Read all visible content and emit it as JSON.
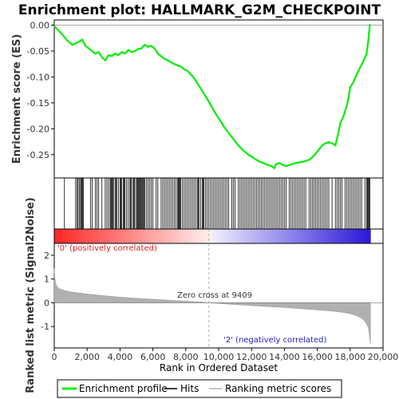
{
  "chart_data": {
    "type": "line",
    "title": "Enrichment plot: HALLMARK_G2M_CHECKPOINT",
    "colors": {
      "enrichment_line": "#00ee00",
      "pos_corr_label": "#e02020",
      "neg_corr_label": "#2020d0",
      "metric_fill": "#b0b0b0",
      "zero_line": "#888888"
    },
    "top_panel": {
      "ylabel": "Enrichment score (ES)",
      "ylim": [
        -0.295,
        0.01
      ],
      "yticks": [
        0.0,
        -0.05,
        -0.1,
        -0.15,
        -0.2,
        -0.25
      ],
      "ytick_labels": [
        "0.00",
        "-0.05",
        "-0.10",
        "-0.15",
        "-0.20",
        "-0.25"
      ],
      "series": [
        {
          "name": "Enrichment profile",
          "x": [
            0,
            300,
            600,
            800,
            1100,
            1300,
            1500,
            1700,
            1900,
            2100,
            2300,
            2500,
            2700,
            2900,
            3100,
            3300,
            3500,
            3700,
            3900,
            4100,
            4300,
            4500,
            4700,
            4900,
            5100,
            5300,
            5500,
            5700,
            5900,
            6100,
            6300,
            6500,
            6700,
            6900,
            7100,
            7300,
            7500,
            7700,
            7900,
            8100,
            8300,
            8500,
            8700,
            8900,
            9100,
            9409,
            9700,
            10000,
            10300,
            10600,
            10900,
            11200,
            11500,
            11800,
            12100,
            12400,
            12700,
            13000,
            13200,
            13400,
            13500,
            13700,
            13900,
            14100,
            14300,
            14500,
            14700,
            14900,
            15100,
            15300,
            15500,
            15700,
            15900,
            16100,
            16300,
            16500,
            16700,
            16900,
            17100,
            17300,
            17400,
            17600,
            17800,
            17900,
            18000,
            18200,
            18400,
            18600,
            18800,
            19000,
            19100,
            19200
          ],
          "values": [
            -0.002,
            -0.012,
            -0.022,
            -0.03,
            -0.038,
            -0.035,
            -0.032,
            -0.028,
            -0.04,
            -0.045,
            -0.05,
            -0.055,
            -0.052,
            -0.062,
            -0.068,
            -0.058,
            -0.06,
            -0.055,
            -0.058,
            -0.052,
            -0.055,
            -0.048,
            -0.052,
            -0.05,
            -0.046,
            -0.045,
            -0.038,
            -0.042,
            -0.04,
            -0.045,
            -0.055,
            -0.06,
            -0.065,
            -0.068,
            -0.072,
            -0.075,
            -0.078,
            -0.08,
            -0.085,
            -0.088,
            -0.095,
            -0.102,
            -0.112,
            -0.122,
            -0.132,
            -0.148,
            -0.165,
            -0.18,
            -0.195,
            -0.208,
            -0.22,
            -0.232,
            -0.242,
            -0.25,
            -0.256,
            -0.262,
            -0.266,
            -0.27,
            -0.272,
            -0.276,
            -0.268,
            -0.266,
            -0.27,
            -0.272,
            -0.27,
            -0.268,
            -0.266,
            -0.265,
            -0.264,
            -0.262,
            -0.26,
            -0.255,
            -0.248,
            -0.24,
            -0.232,
            -0.228,
            -0.226,
            -0.228,
            -0.232,
            -0.205,
            -0.19,
            -0.175,
            -0.155,
            -0.14,
            -0.12,
            -0.11,
            -0.095,
            -0.082,
            -0.07,
            -0.055,
            -0.03,
            0.002
          ]
        }
      ]
    },
    "hits": [
      620,
      1300,
      1380,
      1450,
      1520,
      1600,
      1650,
      1700,
      1720,
      1780,
      2200,
      2300,
      2500,
      2600,
      2700,
      2900,
      3100,
      3200,
      3300,
      3400,
      3450,
      3500,
      3550,
      3600,
      3700,
      3750,
      3800,
      3900,
      4000,
      4050,
      4100,
      4200,
      4250,
      4300,
      4400,
      4500,
      4600,
      4650,
      4700,
      4800,
      4850,
      4900,
      5000,
      5050,
      5100,
      5150,
      5200,
      5250,
      5300,
      5350,
      5400,
      5450,
      5500,
      5600,
      5700,
      5800,
      5900,
      6000,
      6200,
      6300,
      6500,
      6600,
      6700,
      6800,
      6900,
      7000,
      7100,
      7200,
      7300,
      7400,
      7500,
      7550,
      7600,
      7650,
      7700,
      7800,
      7900,
      8000,
      8100,
      8200,
      8300,
      8400,
      8500,
      8600,
      8700,
      8750,
      8800,
      8900,
      9000,
      9050,
      9100,
      9200,
      9300,
      9400,
      9500,
      9600,
      9700,
      9800,
      9900,
      10000,
      10100,
      10200,
      10300,
      10400,
      10500,
      10600,
      10800,
      10900,
      11000,
      11200,
      11300,
      11400,
      11500,
      11600,
      11700,
      11800,
      11900,
      12000,
      12100,
      12200,
      12300,
      12400,
      12500,
      12600,
      12700,
      12800,
      12900,
      13000,
      13100,
      13200,
      13300,
      13400,
      13500,
      13600,
      13700,
      13800,
      13900,
      14000,
      14100,
      14300,
      14400,
      14500,
      14600,
      14700,
      14800,
      14900,
      15000,
      15100,
      15200,
      15300,
      15500,
      15600,
      15700,
      15800,
      15900,
      16000,
      16100,
      16200,
      16300,
      16400,
      16500,
      16600,
      16700,
      16900,
      17100,
      17200,
      17300,
      17400,
      17500,
      17700,
      17800,
      17900,
      18000,
      18100,
      18200,
      18300,
      18400,
      18500,
      18600,
      18700,
      18900,
      19000,
      19050,
      19100,
      19150,
      19200
    ],
    "bottom_panel": {
      "ylabel": "Ranked list metric (Signal2Noise)",
      "xlabel": "Rank in Ordered Dataset",
      "ylim": [
        -1.9,
        2.5
      ],
      "yticks": [
        2,
        1,
        0,
        -1
      ],
      "ytick_labels": [
        "2",
        "1",
        "0",
        "-1"
      ],
      "metric_curve": {
        "x": [
          0,
          30,
          80,
          150,
          300,
          600,
          1000,
          2000,
          3000,
          4000,
          5000,
          6000,
          7000,
          8000,
          9000,
          9409,
          10000,
          11000,
          12000,
          13000,
          14000,
          15000,
          16000,
          17000,
          17500,
          18000,
          18400,
          18700,
          18900,
          19000,
          19100,
          19150,
          19200,
          19240
        ],
        "values": [
          1.45,
          1.1,
          0.85,
          0.7,
          0.6,
          0.52,
          0.46,
          0.37,
          0.3,
          0.24,
          0.19,
          0.15,
          0.11,
          0.07,
          0.03,
          0.0,
          -0.03,
          -0.08,
          -0.12,
          -0.16,
          -0.2,
          -0.25,
          -0.3,
          -0.36,
          -0.4,
          -0.46,
          -0.55,
          -0.65,
          -0.78,
          -0.9,
          -1.05,
          -1.25,
          -1.55,
          -1.75
        ]
      },
      "zero_cross_label": "Zero cross at 9409",
      "zero_cross_x": 9409,
      "pos_label": "'0' (positively correlated)",
      "neg_label": "'2' (negatively correlated)"
    },
    "xaxis": {
      "xlim": [
        0,
        20000
      ],
      "ticks": [
        0,
        2000,
        4000,
        6000,
        8000,
        10000,
        12000,
        14000,
        16000,
        18000,
        20000
      ],
      "tick_labels": [
        "0",
        "2,000",
        "4,000",
        "6,000",
        "8,000",
        "10,000",
        "12,000",
        "14,000",
        "16,000",
        "18,000",
        "20,000"
      ],
      "n_genes": 19240
    },
    "legend": {
      "placement": "bottom",
      "items": [
        "Enrichment profile",
        "Hits",
        "Ranking metric scores"
      ]
    }
  }
}
